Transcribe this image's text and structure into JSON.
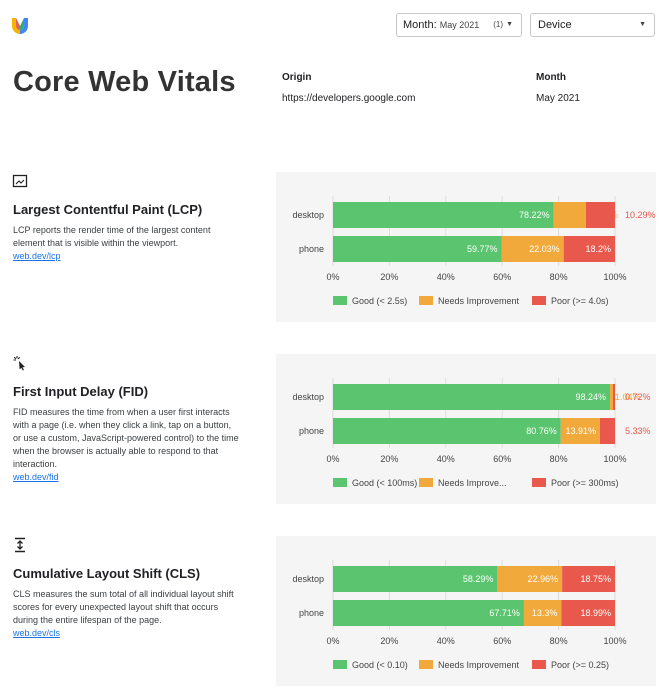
{
  "header": {
    "month_select_label": "Month:",
    "month_select_value": "May 2021",
    "month_select_count": "(1)",
    "device_select_value": "Device"
  },
  "page_title": "Core Web Vitals",
  "meta": {
    "origin_label": "Origin",
    "origin_value": "https://developers.google.com",
    "month_label": "Month",
    "month_value": "May 2021"
  },
  "colors": {
    "good": "#5ac46e",
    "ni": "#f2a93b",
    "poor": "#e8584c"
  },
  "sections": [
    {
      "icon": "lcp-image-icon",
      "title": "Largest Contentful Paint (LCP)",
      "description": "LCP reports the render time of the largest content element that is visible within the viewport.",
      "link": "web.dev/lcp"
    },
    {
      "icon": "fid-cursor-icon",
      "title": "First Input Delay (FID)",
      "description": "FID measures the time from when a user first interacts with a page (i.e. when they click a link, tap on a button, or use a custom, JavaScript-powered control) to the time when the browser is actually able to respond to that interaction.",
      "link": "web.dev/fid"
    },
    {
      "icon": "cls-shift-icon",
      "title": "Cumulative Layout Shift (CLS)",
      "description": "CLS measures the sum total of all individual layout shift scores for every unexpected layout shift that occurs during the entire lifespan of the page.",
      "link": "web.dev/cls"
    }
  ],
  "chart_data": [
    {
      "type": "bar",
      "orientation": "horizontal",
      "stacked": true,
      "categories": [
        "desktop",
        "phone"
      ],
      "series": [
        {
          "name": "Good (< 2.5s)",
          "values": [
            78.22,
            59.77
          ],
          "labels": [
            "78.22%",
            "59.77%"
          ]
        },
        {
          "name": "Needs Improvement",
          "values": [
            11.49,
            22.03
          ],
          "labels": [
            "11.49%",
            "22.03%"
          ]
        },
        {
          "name": "Poor (>= 4.0s)",
          "values": [
            10.29,
            18.2
          ],
          "labels": [
            "10.29%",
            "18.2%"
          ]
        }
      ],
      "xlim": [
        0,
        100
      ],
      "xticks": [
        "0%",
        "20%",
        "40%",
        "60%",
        "80%",
        "100%"
      ],
      "legend": "bottom"
    },
    {
      "type": "bar",
      "orientation": "horizontal",
      "stacked": true,
      "categories": [
        "desktop",
        "phone"
      ],
      "series": [
        {
          "name": "Good (< 100ms)",
          "values": [
            98.24,
            80.76
          ],
          "labels": [
            "98.24%",
            "80.76%"
          ]
        },
        {
          "name": "Needs Improve...",
          "values": [
            1.04,
            13.91
          ],
          "labels": [
            "1.04%",
            "13.91%"
          ]
        },
        {
          "name": "Poor (>= 300ms)",
          "values": [
            0.72,
            5.33
          ],
          "labels": [
            "0.72%",
            "5.33%"
          ]
        }
      ],
      "xlim": [
        0,
        100
      ],
      "xticks": [
        "0%",
        "20%",
        "40%",
        "60%",
        "80%",
        "100%"
      ],
      "legend": "bottom"
    },
    {
      "type": "bar",
      "orientation": "horizontal",
      "stacked": true,
      "categories": [
        "desktop",
        "phone"
      ],
      "series": [
        {
          "name": "Good (< 0.10)",
          "values": [
            58.29,
            67.71
          ],
          "labels": [
            "58.29%",
            "67.71%"
          ]
        },
        {
          "name": "Needs Improvement",
          "values": [
            22.96,
            13.3
          ],
          "labels": [
            "22.96%",
            "13.3%"
          ]
        },
        {
          "name": "Poor (>= 0.25)",
          "values": [
            18.75,
            18.99
          ],
          "labels": [
            "18.75%",
            "18.99%"
          ]
        }
      ],
      "xlim": [
        0,
        100
      ],
      "xticks": [
        "0%",
        "20%",
        "40%",
        "60%",
        "80%",
        "100%"
      ],
      "legend": "bottom"
    }
  ]
}
